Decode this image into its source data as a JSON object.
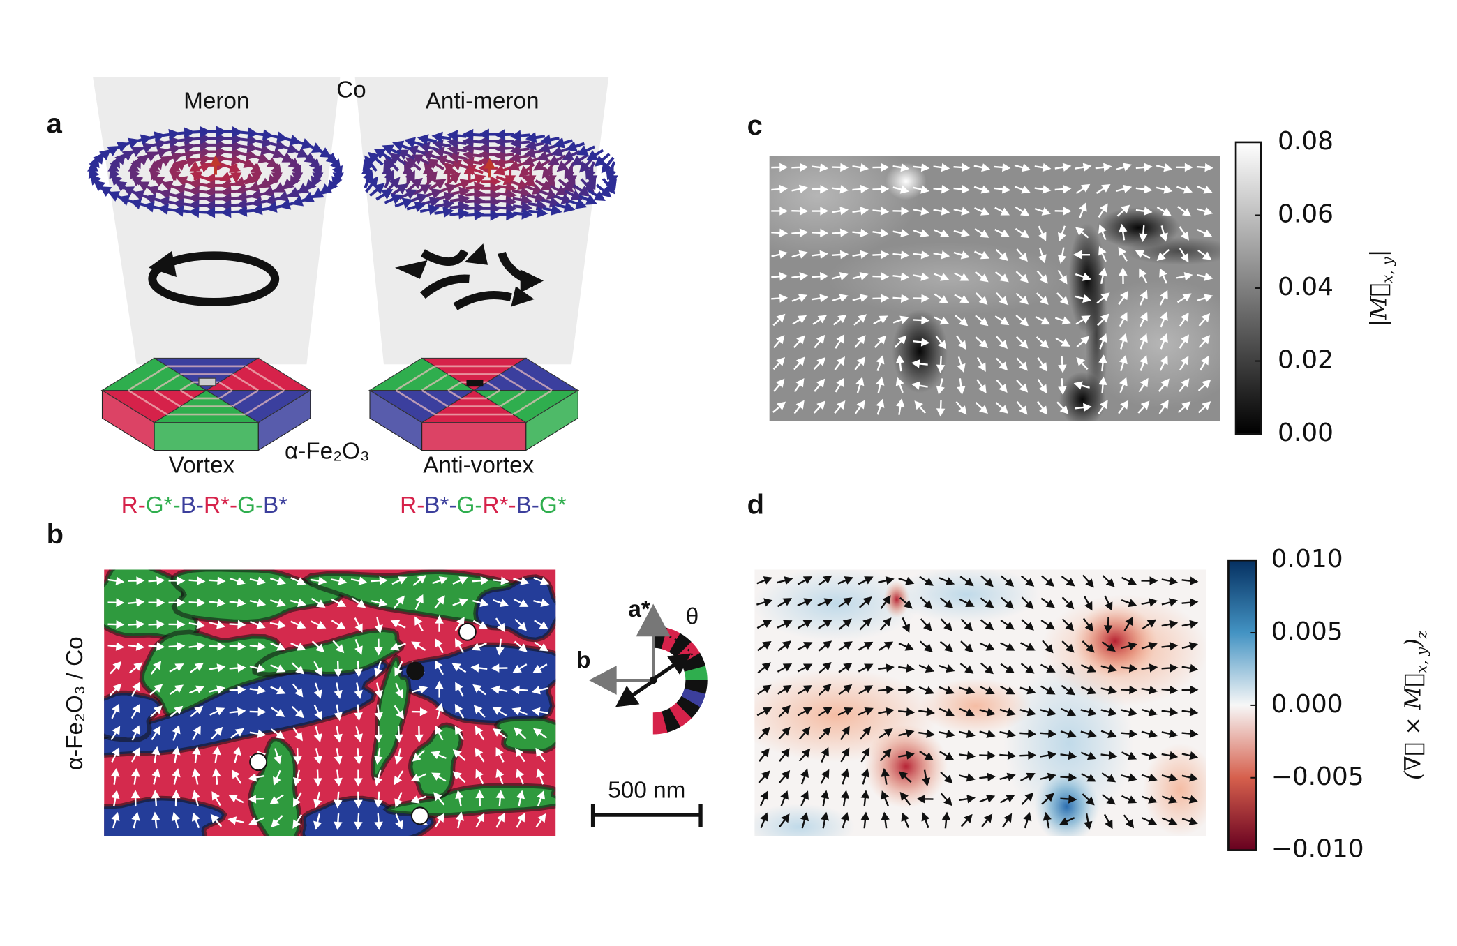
{
  "panel_a": {
    "label": "a",
    "meron": "Meron",
    "co": "Co",
    "anti_meron": "Anti-meron",
    "substrate": "α-Fe₂O₃",
    "vortex": "Vortex",
    "anti_vortex": "Anti-vortex",
    "vortex_sequence": {
      "tokens": [
        "R-",
        "G*-",
        "B-",
        "R*-",
        "G-",
        "B*"
      ],
      "colors": [
        "#d6224a",
        "#2fae4e",
        "#3c3f9c",
        "#d6224a",
        "#2fae4e",
        "#3c3f9c"
      ]
    },
    "anti_vortex_sequence": {
      "tokens": [
        "R-",
        "B*-",
        "G-",
        "R*-",
        "B-",
        "G*"
      ],
      "colors": [
        "#d6224a",
        "#3c3f9c",
        "#2fae4e",
        "#d6224a",
        "#3c3f9c",
        "#2fae4e"
      ]
    }
  },
  "panel_b": {
    "label": "b",
    "ylabel": "α-Fe₂O₃ / Co",
    "axis_a": "a*",
    "axis_b": "b",
    "angle": "θ",
    "scale_bar": "500 nm"
  },
  "panel_c": {
    "label": "c",
    "colorbar": {
      "label": {
        "open": "|M⃗",
        "sub": "x, y",
        "close": "|"
      },
      "lim": [
        0,
        0.08
      ],
      "ticks": [
        {
          "value": 0,
          "label": "0.00"
        },
        0.02,
        0.04,
        0.06,
        0.08
      ],
      "colors": [
        "#000000",
        "#ffffff"
      ]
    }
  },
  "panel_d": {
    "label": "d",
    "colorbar": {
      "label": {
        "open": "(∇⃗ × M⃗",
        "sub": "x, y",
        "close": ")",
        "sub2": "z"
      },
      "lim": [
        -0.01,
        0.01
      ],
      "ticks": [
        {
          "value": -0.01,
          "label": "−0.010"
        },
        {
          "value": -0.005,
          "label": "−0.005"
        },
        {
          "value": 0,
          "label": "0.000"
        },
        {
          "value": 0.005,
          "label": "0.005"
        },
        {
          "value": 0.01,
          "label": "0.010"
        }
      ],
      "colors": [
        "#67001f",
        "#d6604d",
        "#f7f7f7",
        "#4393c3",
        "#053061"
      ]
    }
  }
}
